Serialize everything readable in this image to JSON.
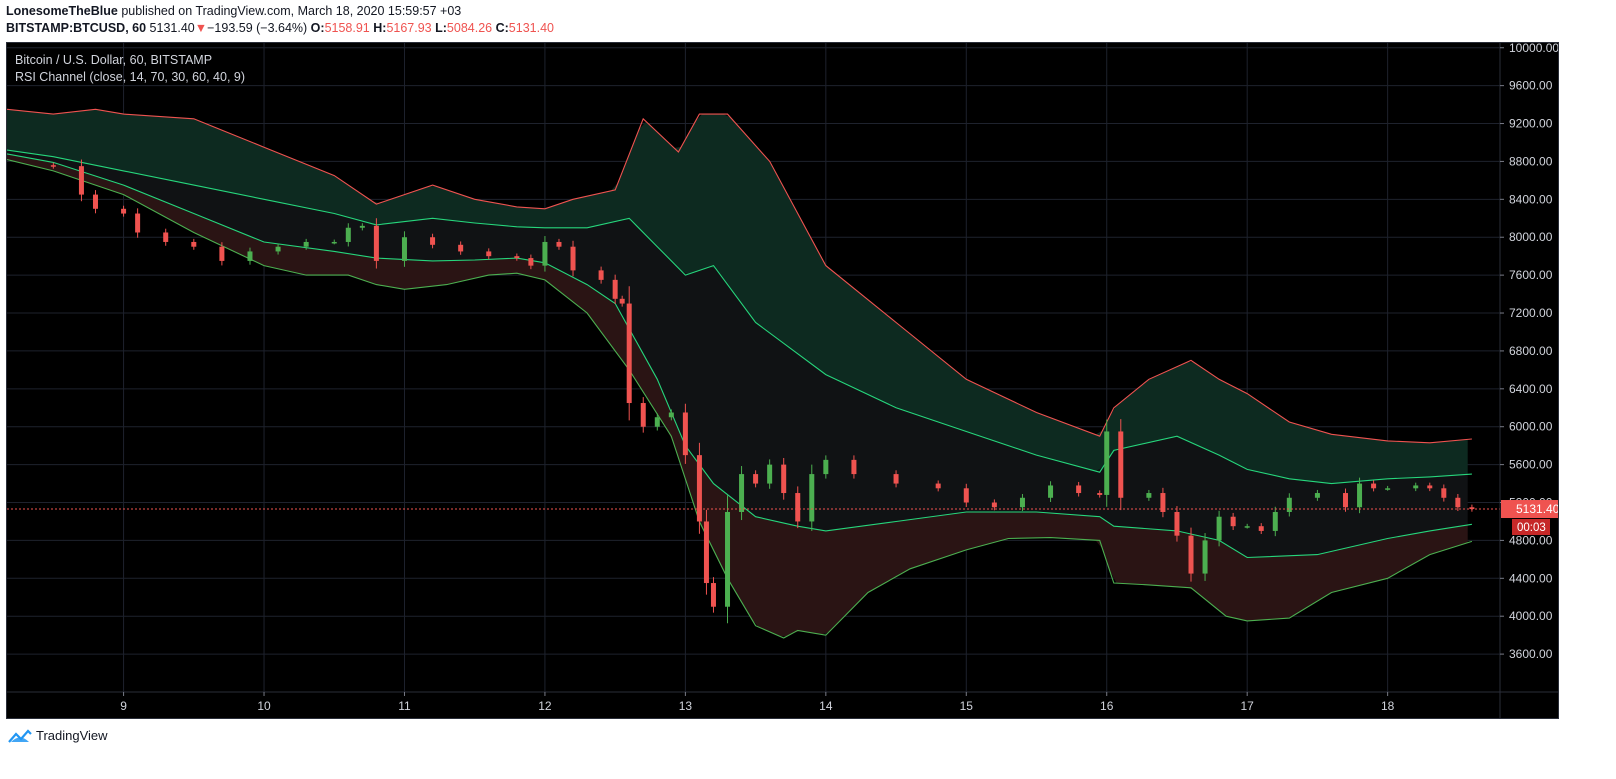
{
  "header": {
    "author": "LonesomeTheBlue",
    "published": "published on TradingView.com, March 18, 2020 15:59:57 +03",
    "symbol": "BITSTAMP:BTCUSD, 60",
    "last": "5131.40",
    "arrow": "▼",
    "change": "−193.59 (−3.64%)",
    "o_label": "O:",
    "o": "5158.91",
    "h_label": "H:",
    "h": "5167.93",
    "l_label": "L:",
    "l": "5084.26",
    "c_label": "C:",
    "c": "5131.40"
  },
  "legend": {
    "title": "Bitcoin / U.S. Dollar, 60, BITSTAMP",
    "indicator": "RSI Channel (close, 14, 70, 30, 60, 40, 9)"
  },
  "price_tag": {
    "value": "5131.40",
    "countdown": "00:03"
  },
  "footer": {
    "brand": "TradingView"
  },
  "colors": {
    "background": "#000000",
    "up": "#26a69a",
    "candle_up": "#4caf50",
    "candle_down": "#ef5350",
    "band_upper": "#ef5350",
    "band_mid_upper": "#26d67c",
    "band_lower": "#4caf50",
    "fill_upper": "#0d2a20",
    "fill_mid": "#101214",
    "fill_lower": "#2a1414",
    "grid": "#1e222d",
    "axis_text": "#d1d4dc"
  },
  "chart_data": {
    "type": "line",
    "title": "Bitcoin / U.S. Dollar, 60, BITSTAMP",
    "x_ticks": [
      "9",
      "10",
      "11",
      "12",
      "13",
      "14",
      "15",
      "16",
      "17",
      "18"
    ],
    "x_range": [
      8.17,
      18.8
    ],
    "y_ticks": [
      "3600.00",
      "4000.00",
      "4400.00",
      "4800.00",
      "5200.00",
      "5600.00",
      "6000.00",
      "6400.00",
      "6800.00",
      "7200.00",
      "7600.00",
      "8000.00",
      "8400.00",
      "8800.00",
      "9200.00",
      "9600.00",
      "10000.00"
    ],
    "ylim": [
      3200,
      10050
    ],
    "grid": true,
    "current_price": 5131.4,
    "series": [
      {
        "name": "RSI Channel upper",
        "x": [
          8.17,
          8.5,
          8.8,
          9.0,
          9.5,
          10.0,
          10.5,
          10.8,
          11.2,
          11.5,
          11.8,
          12.0,
          12.2,
          12.5,
          12.7,
          12.95,
          13.1,
          13.3,
          13.6,
          14.0,
          14.5,
          15.0,
          15.5,
          15.95,
          16.05,
          16.3,
          16.6,
          16.8,
          17.0,
          17.3,
          17.6,
          18.0,
          18.3,
          18.6
        ],
        "y": [
          9350,
          9300,
          9350,
          9300,
          9250,
          8950,
          8650,
          8350,
          8550,
          8400,
          8320,
          8300,
          8400,
          8500,
          9250,
          8900,
          9300,
          9300,
          8800,
          7700,
          7100,
          6500,
          6150,
          5900,
          6200,
          6500,
          6700,
          6500,
          6350,
          6050,
          5920,
          5850,
          5830,
          5870
        ]
      },
      {
        "name": "RSI Channel mid upper",
        "x": [
          8.17,
          8.5,
          9.0,
          9.5,
          10.0,
          10.5,
          10.8,
          11.2,
          11.5,
          11.8,
          12.0,
          12.3,
          12.6,
          12.8,
          13.0,
          13.2,
          13.5,
          14.0,
          14.5,
          15.0,
          15.5,
          15.95,
          16.05,
          16.5,
          16.8,
          17.0,
          17.3,
          17.6,
          18.0,
          18.3,
          18.6
        ],
        "y": [
          8920,
          8850,
          8700,
          8550,
          8400,
          8250,
          8130,
          8200,
          8150,
          8110,
          8100,
          8100,
          8200,
          7900,
          7600,
          7700,
          7100,
          6550,
          6200,
          5950,
          5700,
          5520,
          5750,
          5900,
          5700,
          5550,
          5450,
          5400,
          5450,
          5470,
          5500
        ]
      },
      {
        "name": "RSI Channel mid lower",
        "x": [
          8.17,
          8.5,
          9.0,
          9.5,
          10.0,
          10.5,
          10.8,
          11.2,
          11.5,
          11.8,
          12.0,
          12.3,
          12.5,
          12.8,
          13.0,
          13.2,
          13.5,
          13.8,
          14.0,
          14.5,
          15.0,
          15.5,
          15.95,
          16.05,
          16.5,
          16.8,
          17.0,
          17.5,
          18.0,
          18.3,
          18.6
        ],
        "y": [
          8880,
          8790,
          8550,
          8250,
          7950,
          7850,
          7780,
          7750,
          7760,
          7780,
          7730,
          7500,
          7300,
          6500,
          5800,
          5400,
          5050,
          4950,
          4900,
          5000,
          5100,
          5100,
          5050,
          4950,
          4900,
          4800,
          4620,
          4650,
          4820,
          4900,
          4970
        ]
      },
      {
        "name": "RSI Channel lower",
        "x": [
          8.17,
          8.5,
          9.0,
          9.5,
          10.0,
          10.3,
          10.6,
          10.8,
          11.0,
          11.3,
          11.6,
          11.8,
          12.0,
          12.3,
          12.6,
          12.9,
          13.1,
          13.3,
          13.5,
          13.7,
          13.8,
          14.0,
          14.3,
          14.6,
          15.0,
          15.3,
          15.6,
          15.95,
          16.05,
          16.3,
          16.6,
          16.85,
          17.0,
          17.3,
          17.6,
          18.0,
          18.3,
          18.6
        ],
        "y": [
          8820,
          8700,
          8450,
          8050,
          7700,
          7600,
          7600,
          7500,
          7450,
          7500,
          7600,
          7620,
          7550,
          7200,
          6600,
          5900,
          5000,
          4400,
          3900,
          3770,
          3850,
          3800,
          4250,
          4500,
          4700,
          4820,
          4830,
          4800,
          4350,
          4330,
          4300,
          4000,
          3950,
          3980,
          4250,
          4400,
          4650,
          4790
        ]
      },
      {
        "name": "BTCUSD close",
        "x": [
          8.17,
          8.5,
          8.7,
          8.8,
          9.0,
          9.1,
          9.3,
          9.5,
          9.7,
          9.9,
          10.1,
          10.3,
          10.5,
          10.6,
          10.7,
          10.8,
          11.0,
          11.2,
          11.4,
          11.6,
          11.8,
          11.9,
          12.0,
          12.1,
          12.2,
          12.4,
          12.5,
          12.55,
          12.6,
          12.7,
          12.8,
          12.9,
          13.0,
          13.1,
          13.15,
          13.2,
          13.3,
          13.4,
          13.5,
          13.6,
          13.7,
          13.8,
          13.9,
          14.0,
          14.2,
          14.5,
          14.8,
          15.0,
          15.2,
          15.4,
          15.6,
          15.8,
          15.95,
          16.0,
          16.1,
          16.3,
          16.4,
          16.5,
          16.6,
          16.7,
          16.8,
          16.9,
          17.0,
          17.1,
          17.2,
          17.3,
          17.5,
          17.7,
          17.8,
          17.9,
          18.0,
          18.2,
          18.3,
          18.4,
          18.5,
          18.6
        ],
        "y": [
          8760,
          8750,
          8450,
          8300,
          8250,
          8050,
          7950,
          7900,
          7750,
          7850,
          7900,
          7950,
          7950,
          8100,
          8120,
          7750,
          8000,
          7920,
          7850,
          7800,
          7780,
          7700,
          7950,
          7900,
          7650,
          7550,
          7350,
          7300,
          6250,
          6000,
          6100,
          6150,
          5700,
          5000,
          4350,
          4100,
          5100,
          5500,
          5400,
          5600,
          5300,
          5000,
          5500,
          5650,
          5500,
          5400,
          5350,
          5200,
          5150,
          5250,
          5380,
          5300,
          5280,
          5950,
          5250,
          5300,
          5100,
          4850,
          4450,
          4800,
          5050,
          4950,
          4950,
          4900,
          5100,
          5250,
          5300,
          5150,
          5400,
          5350,
          5350,
          5380,
          5350,
          5250,
          5150,
          5131
        ]
      }
    ]
  }
}
